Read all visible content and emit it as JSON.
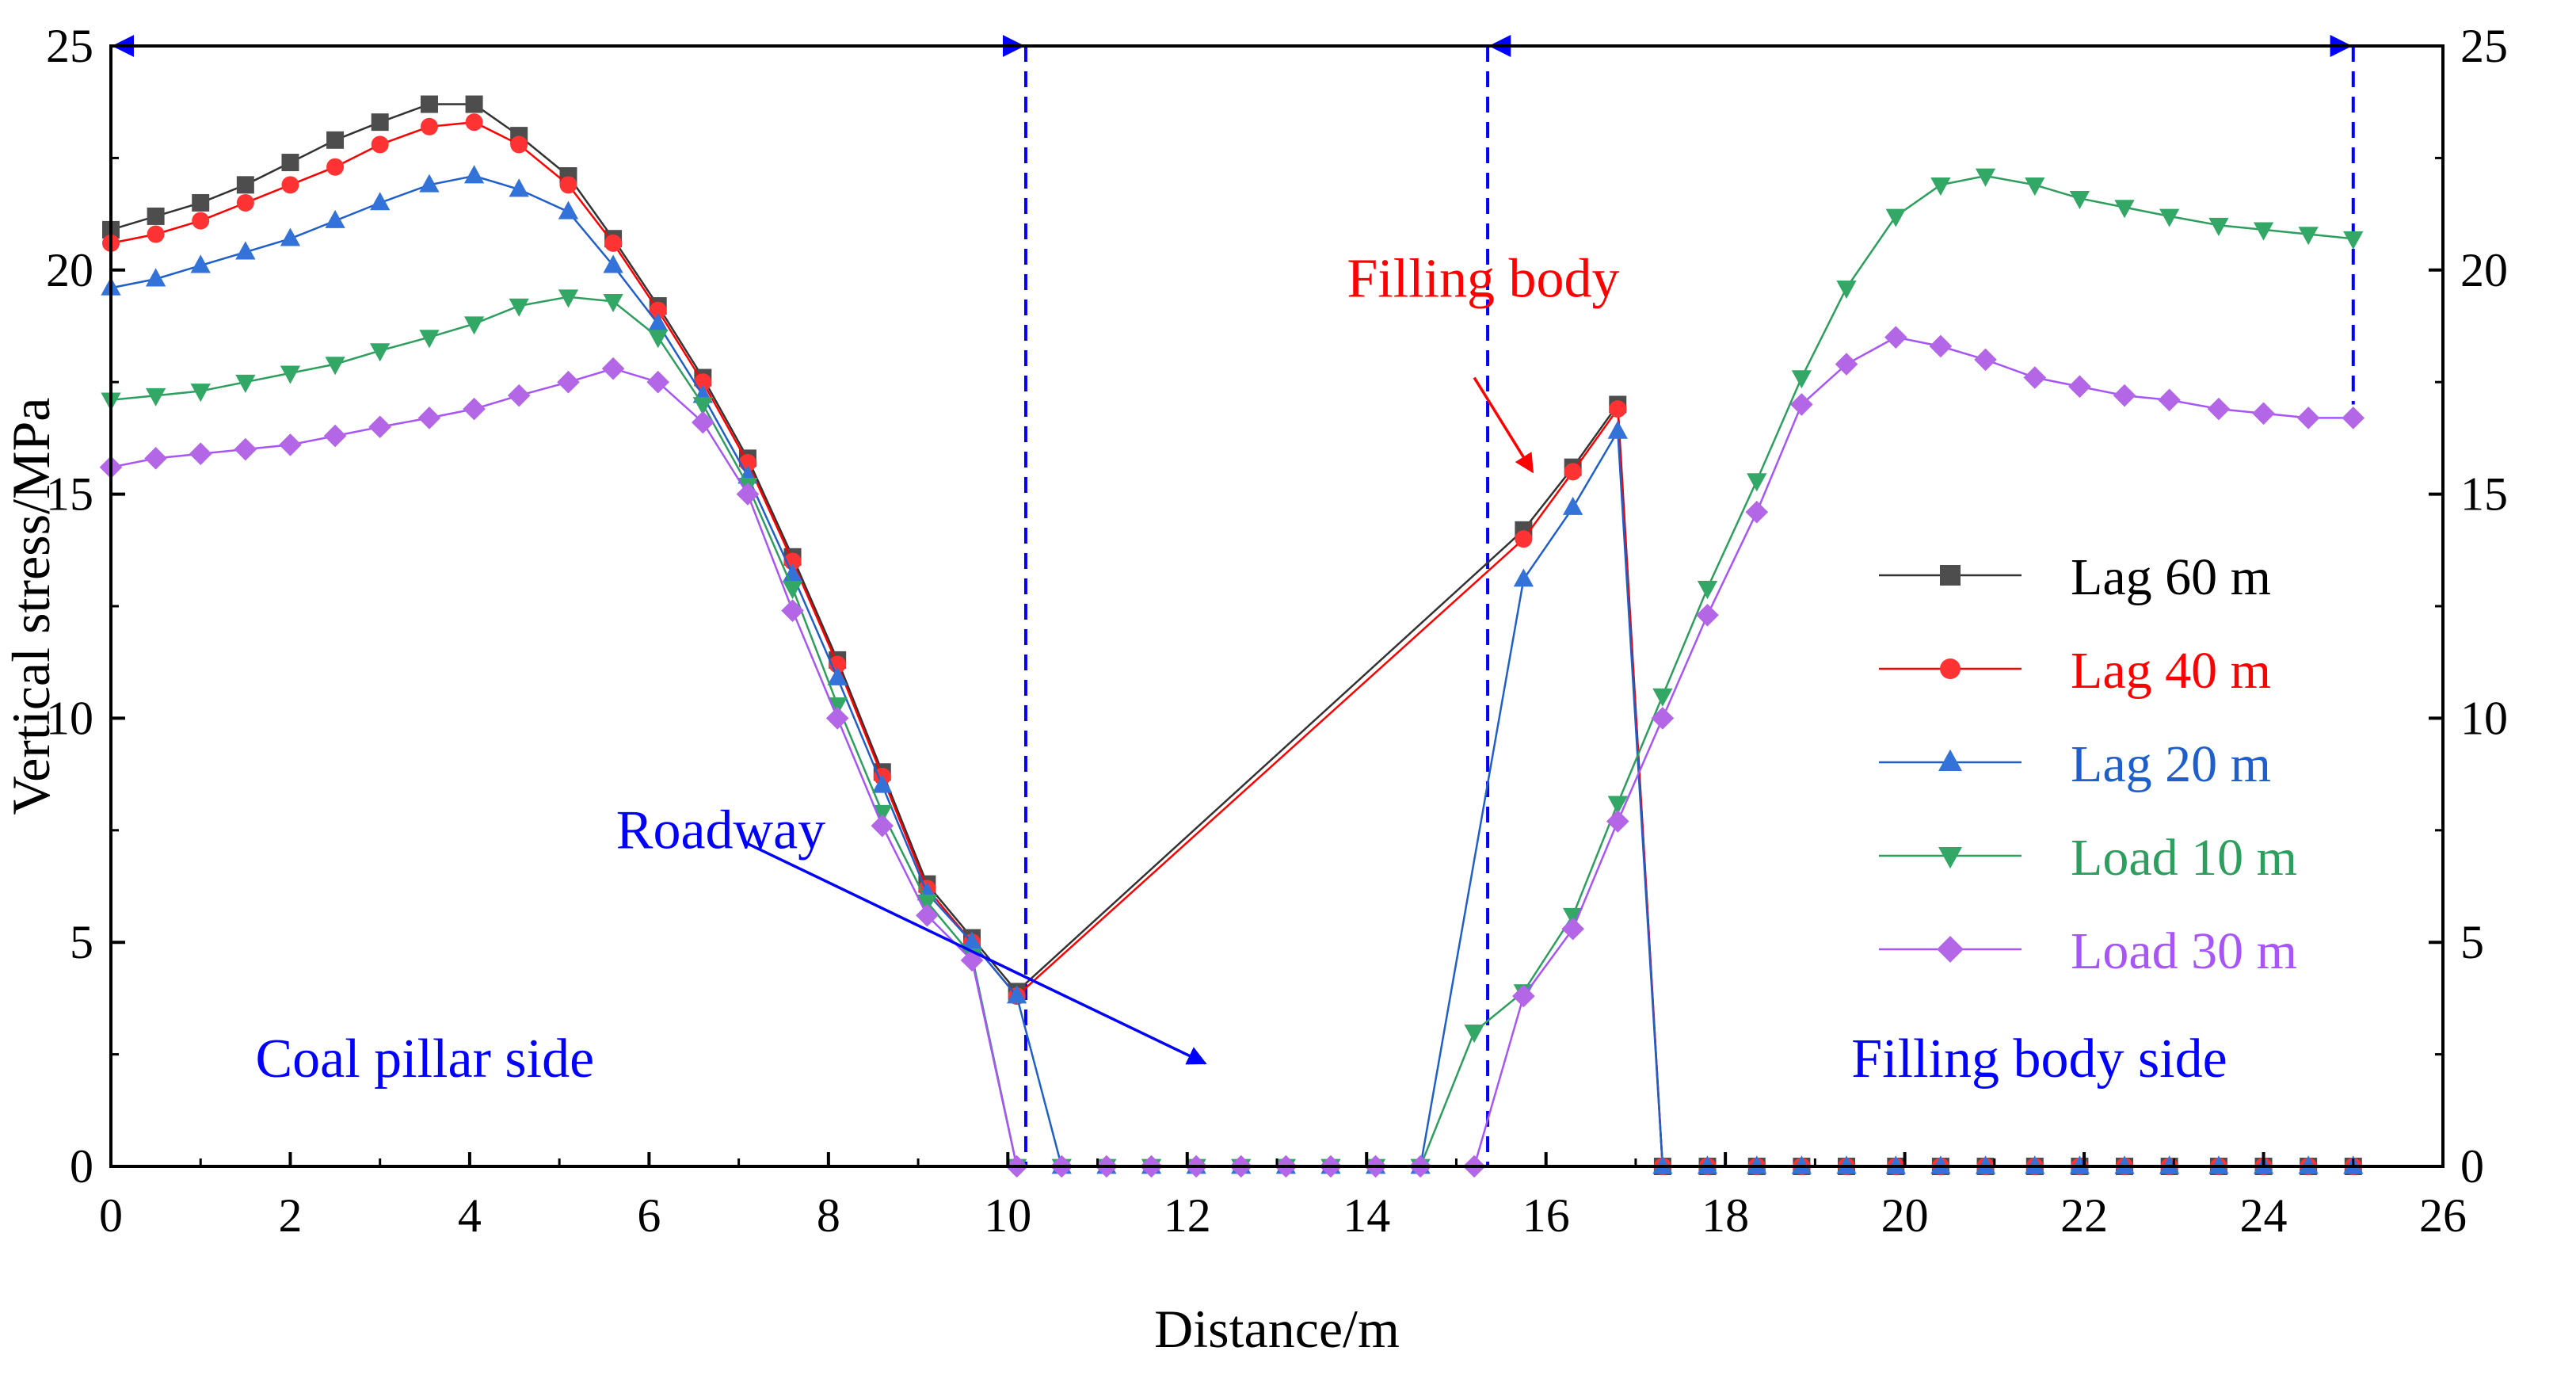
{
  "chart_data": {
    "type": "line",
    "xlabel": "Distance/m",
    "ylabel": "Vertical stress/MPa",
    "xlim": [
      0,
      26
    ],
    "ylim": [
      0,
      25
    ],
    "x_ticks": [
      0,
      2,
      4,
      6,
      8,
      10,
      12,
      14,
      16,
      18,
      20,
      22,
      24,
      26
    ],
    "y_ticks": [
      0,
      5,
      10,
      15,
      20,
      25
    ],
    "legend_position": "right-middle",
    "series": [
      {
        "name": "Lag   60 m",
        "color": "#4d4d4d",
        "line_color": "#333333",
        "marker": "square",
        "x": [
          0,
          0.5,
          1,
          1.5,
          2,
          2.5,
          3,
          3.55,
          4.05,
          4.55,
          5.1,
          5.6,
          6.1,
          6.6,
          7.1,
          7.6,
          8.1,
          8.6,
          9.1,
          9.6,
          10.1,
          15.75,
          16.3,
          16.8,
          17.3,
          17.8,
          18.35,
          18.85,
          19.35,
          19.9,
          20.4,
          20.9,
          21.45,
          21.95,
          22.45,
          22.95,
          23.5,
          24,
          24.5,
          25
        ],
        "y": [
          20.9,
          21.2,
          21.5,
          21.9,
          22.4,
          22.9,
          23.3,
          23.7,
          23.7,
          23.0,
          22.1,
          20.7,
          19.2,
          17.6,
          15.8,
          13.6,
          11.3,
          8.8,
          6.3,
          5.1,
          3.9,
          14.2,
          15.6,
          17.0,
          0,
          0,
          0,
          0,
          0,
          0,
          0,
          0,
          0,
          0,
          0,
          0,
          0,
          0,
          0,
          0
        ]
      },
      {
        "name": "Lag   40 m",
        "color": "#ff3333",
        "line_color": "#ff0000",
        "marker": "circle",
        "x": [
          0,
          0.5,
          1,
          1.5,
          2,
          2.5,
          3,
          3.55,
          4.05,
          4.55,
          5.1,
          5.6,
          6.1,
          6.6,
          7.1,
          7.6,
          8.1,
          8.6,
          9.1,
          9.6,
          10.1,
          15.75,
          16.3,
          16.8,
          17.3,
          17.8,
          18.35,
          18.85,
          19.35,
          19.9,
          20.4,
          20.9,
          21.45,
          21.95,
          22.45,
          22.95,
          23.5,
          24,
          24.5,
          25
        ],
        "y": [
          20.6,
          20.8,
          21.1,
          21.5,
          21.9,
          22.3,
          22.8,
          23.2,
          23.3,
          22.8,
          21.9,
          20.6,
          19.1,
          17.5,
          15.7,
          13.5,
          11.2,
          8.7,
          6.2,
          5.0,
          3.8,
          14.0,
          15.5,
          16.9,
          0,
          0,
          0,
          0,
          0,
          0,
          0,
          0,
          0,
          0,
          0,
          0,
          0,
          0,
          0,
          0
        ]
      },
      {
        "name": "Lag   20 m",
        "color": "#3373d9",
        "line_color": "#1f5fcc",
        "marker": "triangle-up",
        "x": [
          0,
          0.5,
          1,
          1.5,
          2,
          2.5,
          3,
          3.55,
          4.05,
          4.55,
          5.1,
          5.6,
          6.1,
          6.6,
          7.1,
          7.6,
          8.1,
          8.6,
          9.1,
          9.6,
          10.1,
          10.6,
          11.1,
          11.6,
          12.1,
          12.6,
          13.1,
          13.6,
          14.1,
          14.6,
          15.75,
          16.3,
          16.8,
          17.3,
          17.8,
          18.35,
          18.85,
          19.35,
          19.9,
          20.4,
          20.9,
          21.45,
          21.95,
          22.45,
          22.95,
          23.5,
          24,
          24.5,
          25
        ],
        "y": [
          19.6,
          19.8,
          20.1,
          20.4,
          20.7,
          21.1,
          21.5,
          21.9,
          22.1,
          21.8,
          21.3,
          20.1,
          18.8,
          17.2,
          15.4,
          13.2,
          10.9,
          8.5,
          6.1,
          5.0,
          3.8,
          0,
          0,
          0,
          0,
          0,
          0,
          0,
          0,
          0,
          13.1,
          14.7,
          16.4,
          0,
          0,
          0,
          0,
          0,
          0,
          0,
          0,
          0,
          0,
          0,
          0,
          0,
          0,
          0,
          0
        ]
      },
      {
        "name": "Load 10 m",
        "color": "#33a866",
        "line_color": "#2e9e5e",
        "marker": "triangle-down",
        "x": [
          0,
          0.5,
          1,
          1.5,
          2,
          2.5,
          3,
          3.55,
          4.05,
          4.55,
          5.1,
          5.6,
          6.1,
          6.6,
          7.1,
          7.6,
          8.1,
          8.6,
          9.1,
          9.6,
          10.1,
          10.6,
          11.1,
          11.6,
          12.1,
          12.6,
          13.1,
          13.6,
          14.1,
          14.6,
          15.2,
          15.75,
          16.3,
          16.8,
          17.3,
          17.8,
          18.35,
          18.85,
          19.35,
          19.9,
          20.4,
          20.9,
          21.45,
          21.95,
          22.45,
          22.95,
          23.5,
          24,
          24.5,
          25
        ],
        "y": [
          17.1,
          17.2,
          17.3,
          17.5,
          17.7,
          17.9,
          18.2,
          18.5,
          18.8,
          19.2,
          19.4,
          19.3,
          18.5,
          17.0,
          15.2,
          12.9,
          10.3,
          7.9,
          5.9,
          4.7,
          0,
          0,
          0,
          0,
          0,
          0,
          0,
          0,
          0,
          0,
          3.0,
          3.9,
          5.6,
          8.1,
          10.5,
          12.9,
          15.3,
          17.6,
          19.6,
          21.2,
          21.9,
          22.1,
          21.9,
          21.6,
          21.4,
          21.2,
          21.0,
          20.9,
          20.8,
          20.7
        ]
      },
      {
        "name": "Load 30 m",
        "color": "#b366e6",
        "line_color": "#a855f7",
        "marker": "diamond",
        "x": [
          0,
          0.5,
          1,
          1.5,
          2,
          2.5,
          3,
          3.55,
          4.05,
          4.55,
          5.1,
          5.6,
          6.1,
          6.6,
          7.1,
          7.6,
          8.1,
          8.6,
          9.1,
          9.6,
          10.1,
          10.6,
          11.1,
          11.6,
          12.1,
          12.6,
          13.1,
          13.6,
          14.1,
          14.6,
          15.2,
          15.75,
          16.3,
          16.8,
          17.3,
          17.8,
          18.35,
          18.85,
          19.35,
          19.9,
          20.4,
          20.9,
          21.45,
          21.95,
          22.45,
          22.95,
          23.5,
          24,
          24.5,
          25
        ],
        "y": [
          15.6,
          15.8,
          15.9,
          16.0,
          16.1,
          16.3,
          16.5,
          16.7,
          16.9,
          17.2,
          17.5,
          17.8,
          17.5,
          16.6,
          15.0,
          12.4,
          10.0,
          7.6,
          5.6,
          4.6,
          0,
          0,
          0,
          0,
          0,
          0,
          0,
          0,
          0,
          0,
          0,
          3.8,
          5.3,
          7.7,
          10.0,
          12.3,
          14.6,
          17.0,
          17.9,
          18.5,
          18.3,
          18.0,
          17.6,
          17.4,
          17.2,
          17.1,
          16.9,
          16.8,
          16.7,
          16.7
        ]
      }
    ],
    "regions": [
      {
        "x_start": 0,
        "x_end": 10.2,
        "y_top": 25,
        "color": "#0000ff"
      },
      {
        "x_start": 15.35,
        "x_end": 25,
        "y_top": 25,
        "color": "#0000ff"
      }
    ],
    "region_right_edge_y": 17,
    "annotations": [
      {
        "text": "Filling body",
        "color": "#ff0000",
        "text_x": 15.3,
        "text_y": 19.4,
        "arrow_from": [
          15.2,
          17.6
        ],
        "arrow_to": [
          15.85,
          15.5
        ]
      },
      {
        "text": "Roadway",
        "color": "#0000ff",
        "text_x": 6.8,
        "text_y": 7.1,
        "arrow_from": [
          7.1,
          7.2
        ],
        "arrow_to": [
          12.2,
          2.3
        ]
      },
      {
        "text": "Coal pillar side",
        "color": "#0000ff",
        "text_x": 3.5,
        "text_y": 2.0,
        "arrow_from": null,
        "arrow_to": null
      },
      {
        "text": "Filling body side",
        "color": "#0000ff",
        "text_x": 21.5,
        "text_y": 2.0,
        "arrow_from": null,
        "arrow_to": null
      }
    ]
  }
}
